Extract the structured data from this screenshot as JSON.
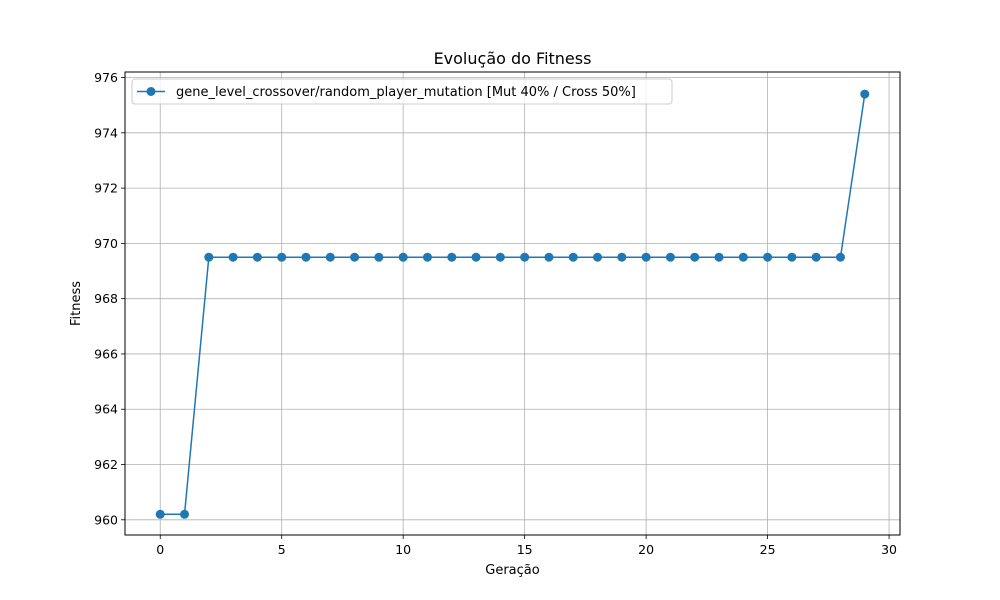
{
  "chart_data": {
    "type": "line",
    "title": "Evolução do Fitness",
    "xlabel": "Geração",
    "ylabel": "Fitness",
    "xlim": [
      -1.45,
      30.45
    ],
    "ylim": [
      959.45,
      976.2
    ],
    "xticks": [
      0,
      5,
      10,
      15,
      20,
      25,
      30
    ],
    "yticks": [
      960,
      962,
      964,
      966,
      968,
      970,
      972,
      974,
      976
    ],
    "grid": true,
    "legend_position": "top-left",
    "series": [
      {
        "name": "gene_level_crossover/random_player_mutation [Mut 40% / Cross 50%]",
        "color": "#1f77b4",
        "marker": "circle",
        "x": [
          0,
          1,
          2,
          3,
          4,
          5,
          6,
          7,
          8,
          9,
          10,
          11,
          12,
          13,
          14,
          15,
          16,
          17,
          18,
          19,
          20,
          21,
          22,
          23,
          24,
          25,
          26,
          27,
          28,
          29
        ],
        "y": [
          960.2,
          960.2,
          969.5,
          969.5,
          969.5,
          969.5,
          969.5,
          969.5,
          969.5,
          969.5,
          969.5,
          969.5,
          969.5,
          969.5,
          969.5,
          969.5,
          969.5,
          969.5,
          969.5,
          969.5,
          969.5,
          969.5,
          969.5,
          969.5,
          969.5,
          969.5,
          969.5,
          969.5,
          969.5,
          975.4
        ]
      }
    ]
  }
}
